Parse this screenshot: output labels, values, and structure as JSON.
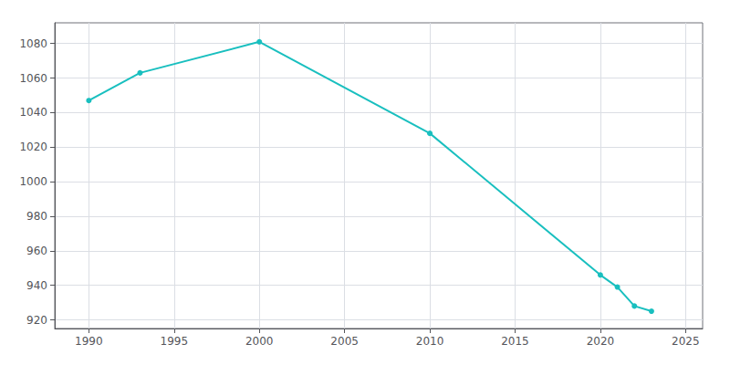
{
  "chart_data": {
    "type": "line",
    "x": [
      1990,
      1993,
      2000,
      2010,
      2020,
      2021,
      2022,
      2023
    ],
    "values": [
      1047,
      1063,
      1081,
      1028,
      946,
      939,
      928,
      925
    ],
    "color": "#19BFBF",
    "marker": "circle",
    "xlim": [
      1988,
      2026
    ],
    "ylim": [
      915,
      1092
    ],
    "xticks": [
      1990,
      1995,
      2000,
      2005,
      2010,
      2015,
      2020,
      2025
    ],
    "yticks": [
      920,
      940,
      960,
      980,
      1000,
      1020,
      1040,
      1060,
      1080
    ],
    "grid": true
  }
}
